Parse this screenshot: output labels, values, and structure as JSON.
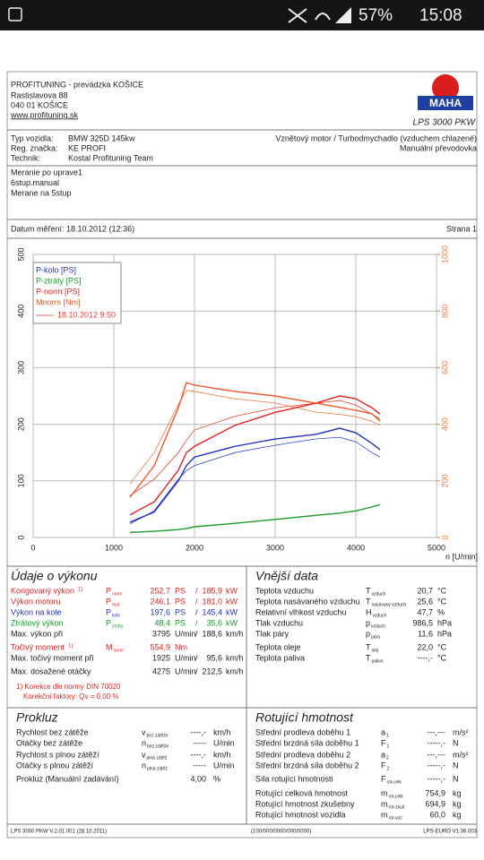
{
  "status_bar": {
    "battery": "57%",
    "time": "15:08"
  },
  "header": {
    "company": "PROFITUNING - prevádzka KOŠICE",
    "street": "Rastislavova 88",
    "city": "040 01 KOŠICE",
    "web": "www.profituning.sk",
    "logo": "MAHA",
    "product": "LPS 3000 PKW"
  },
  "vehicle": {
    "rows": [
      [
        "Typ vozidla:",
        "BMW 325D 145kw"
      ],
      [
        "Reg. značka:",
        "KE PROFI"
      ],
      [
        "Technik:",
        "Kostal Profituning Team"
      ]
    ],
    "engine": "Vznětový motor / Turbodmychadlo (vzduchem chlazené)",
    "gearbox": "Manuální převodovka"
  },
  "notes": [
    "Meranie po uprave1",
    "6stup.manual",
    "Merane na 5stup"
  ],
  "measurement": {
    "date": "Datum měření: 18.10.2012 (12:36)",
    "page": "Strana 1"
  },
  "chart": {
    "type": "line",
    "x_label": "n [U/min]",
    "xlim": [
      0,
      5000
    ],
    "xticks": [
      0,
      1000,
      2000,
      3000,
      4000,
      5000
    ],
    "ylim": [
      0,
      500
    ],
    "yticks": [
      0,
      100,
      200,
      300,
      400,
      500
    ],
    "y2lim": [
      0,
      1000
    ],
    "y2ticks": [
      0,
      200,
      400,
      600,
      800,
      1000
    ],
    "y2_color": "#f07a40",
    "grid": true,
    "x": [
      1200,
      1500,
      1800,
      1900,
      2000,
      2500,
      3000,
      3500,
      3800,
      4000,
      4200,
      4300
    ],
    "series": [
      {
        "name": "P-kolo [PS]",
        "color": "#2233bb",
        "values": [
          27,
          45,
          100,
          127,
          142,
          161,
          174,
          182,
          193,
          185,
          166,
          155
        ]
      },
      {
        "name": "P-ztráty [PS]",
        "color": "#1a9a2a",
        "values": [
          9,
          11,
          14,
          16,
          19,
          25,
          32,
          39,
          43,
          47,
          54,
          58
        ]
      },
      {
        "name": "P-norm [PS]",
        "color": "#e32222",
        "values": [
          40,
          63,
          119,
          150,
          161,
          198,
          221,
          237,
          250,
          245,
          229,
          218
        ]
      },
      {
        "name": "Mnorm [Nm]",
        "color": "#f05a30",
        "axis": "y2",
        "values": [
          142,
          253,
          459,
          547,
          538,
          516,
          500,
          475,
          460,
          449,
          437,
          411
        ]
      }
    ],
    "comparison": {
      "name": "18.10.2012 9:50",
      "color": "#e84030",
      "series": [
        {
          "color": "#e84030",
          "values": [
            74,
            103,
            150,
            172,
            190,
            214,
            229,
            237,
            242,
            234,
            218,
            209
          ]
        },
        {
          "color": "#3344cc",
          "values": [
            24,
            47,
            103,
            118,
            127,
            150,
            163,
            174,
            177,
            169,
            150,
            142
          ]
        },
        {
          "color": "#f07a40",
          "axis": "y2",
          "values": [
            190,
            300,
            470,
            520,
            516,
            490,
            475,
            443,
            435,
            427,
            410,
            396
          ]
        }
      ]
    }
  },
  "sections": [
    {
      "title": "Údaje o výkonu",
      "rows": [
        {
          "label": "Korigovaný výkon",
          "sup": "1)",
          "sym": "P",
          "sub": "norm",
          "v1": "252,7",
          "u1": "PS",
          "sep": "/",
          "v2": "185,9",
          "u2": "kW",
          "color": "#e32222"
        },
        {
          "label": "Výkon motoru",
          "sym": "P",
          "sub": "mot",
          "v1": "246,1",
          "u1": "PS",
          "sep": "/",
          "v2": "181,0",
          "u2": "kW",
          "color": "#e32222"
        },
        {
          "label": "Výkon na kole",
          "sym": "P",
          "sub": "kolo",
          "v1": "197,6",
          "u1": "PS",
          "sep": "/",
          "v2": "145,4",
          "u2": "kW",
          "color": "#2233bb"
        },
        {
          "label": "Ztrátový výkon",
          "sym": "P",
          "sub": "ztráty",
          "v1": "48,4",
          "u1": "PS",
          "sep": "/",
          "v2": "35,6",
          "u2": "kW",
          "color": "#1a9a2a"
        },
        {
          "label": "Max. výkon při",
          "v1": "3795",
          "u1": "U/min",
          "sep": "/",
          "v2": "188,6",
          "u2": "km/h",
          "color": "#222"
        },
        {
          "label": "Točivý moment",
          "sup": "1)",
          "sym": "M",
          "sub": "norm",
          "v1": "554,9",
          "u1": "Nm",
          "color": "#e32222"
        },
        {
          "label": "Max. točivý moment při",
          "v1": "1925",
          "u1": "U/min",
          "sep": "/",
          "v2": "95,6",
          "u2": "km/h",
          "color": "#222"
        },
        {
          "label": "Max. dosažené otáčky",
          "v1": "4275",
          "u1": "U/min",
          "sep": "/",
          "v2": "212,5",
          "u2": "km/h",
          "color": "#222"
        }
      ],
      "notes": [
        "1) Korekce dle normy DIN 70020",
        "Korekční faktory: Qv =  0,00 %"
      ]
    },
    {
      "title": "Vnější data",
      "rows": [
        {
          "label": "Teplota vzduchu",
          "sym": "T",
          "sub": "vzduch",
          "v1": "20,7",
          "u1": "°C"
        },
        {
          "label": "Teplota nasávaného vzduchu",
          "sym": "T",
          "sub": "nasávaný vzduch",
          "v1": "25,6",
          "u1": "°C"
        },
        {
          "label": "Relativní vlhkost vzduchu",
          "sym": "H",
          "sub": "vzduch",
          "v1": "47,7",
          "u1": "%"
        },
        {
          "label": "Tlak vzduchu",
          "sym": "p",
          "sub": "vzduch",
          "v1": "986,5",
          "u1": "hPa"
        },
        {
          "label": "Tlak páry",
          "sym": "p",
          "sub": "pára",
          "v1": "11,6",
          "u1": "hPa"
        },
        {
          "label": "Teplota oleje",
          "sym": "T",
          "sub": "olej",
          "v1": "22,0",
          "u1": "°C"
        },
        {
          "label": "Teplota paliva",
          "sym": "T",
          "sub": "palivo",
          "v1": "----,-",
          "u1": "°C"
        }
      ]
    },
    {
      "title": "Prokluz",
      "rows": [
        {
          "label": "Rychlost bez zátěže",
          "sym": "v",
          "sub": "bez zátěže",
          "v1": "----,-",
          "u1": "km/h"
        },
        {
          "label": "Otáčky bez zátěže",
          "sym": "n",
          "sub": "bez zátěže",
          "v1": "-----",
          "u1": "U/min"
        },
        {
          "label": "Rychlost s plnou zátěží",
          "sym": "v",
          "sub": "plná zátěž",
          "v1": "----,-",
          "u1": "km/h"
        },
        {
          "label": "Otáčky s plnou zátěží",
          "sym": "n",
          "sub": "plná zátěž",
          "v1": "-----",
          "u1": "U/min"
        },
        {
          "label": "Prokluz (Manuální zadávání)",
          "v1": "4,00",
          "u1": "%"
        }
      ]
    },
    {
      "title": "Rotující hmotnost",
      "rows": [
        {
          "label": "Střední prodleva doběhu 1",
          "sym": "a",
          "sub": "1",
          "v1": "---,---",
          "u1": "m/s²"
        },
        {
          "label": "Střední brzdná síla doběhu 1",
          "sym": "F",
          "sub": "1",
          "v1": "-----,-",
          "u1": "N"
        },
        {
          "label": "Střední prodleva doběhu 2",
          "sym": "a",
          "sub": "2",
          "v1": "---,---",
          "u1": "m/s²"
        },
        {
          "label": "Střední brzdná síla doběhu 2",
          "sym": "F",
          "sub": "2",
          "v1": "-----,-",
          "u1": "N"
        },
        {
          "label": "Síla rotující hmotnosti",
          "sym": "F",
          "sub": "rot-celk",
          "v1": "-----,-",
          "u1": "N"
        },
        {
          "label": "Rotující celková hmotnost",
          "sym": "m",
          "sub": "rot-celk",
          "v1": "754,9",
          "u1": "kg"
        },
        {
          "label": "Rotující hmotnost zkušebny",
          "sym": "m",
          "sub": "rot-zkuš",
          "v1": "694,9",
          "u1": "kg"
        },
        {
          "label": "Rotující hmotnost vozidla",
          "sym": "m",
          "sub": "rot-voz",
          "v1": "60,0",
          "u1": "kg"
        }
      ]
    }
  ],
  "footer": {
    "left": "LPS 3000 PKW V.2.01.001 (28.10.2011)",
    "center": "(100/000/0000/000/0000)",
    "right": "LPS-EURO V1.36.003"
  }
}
